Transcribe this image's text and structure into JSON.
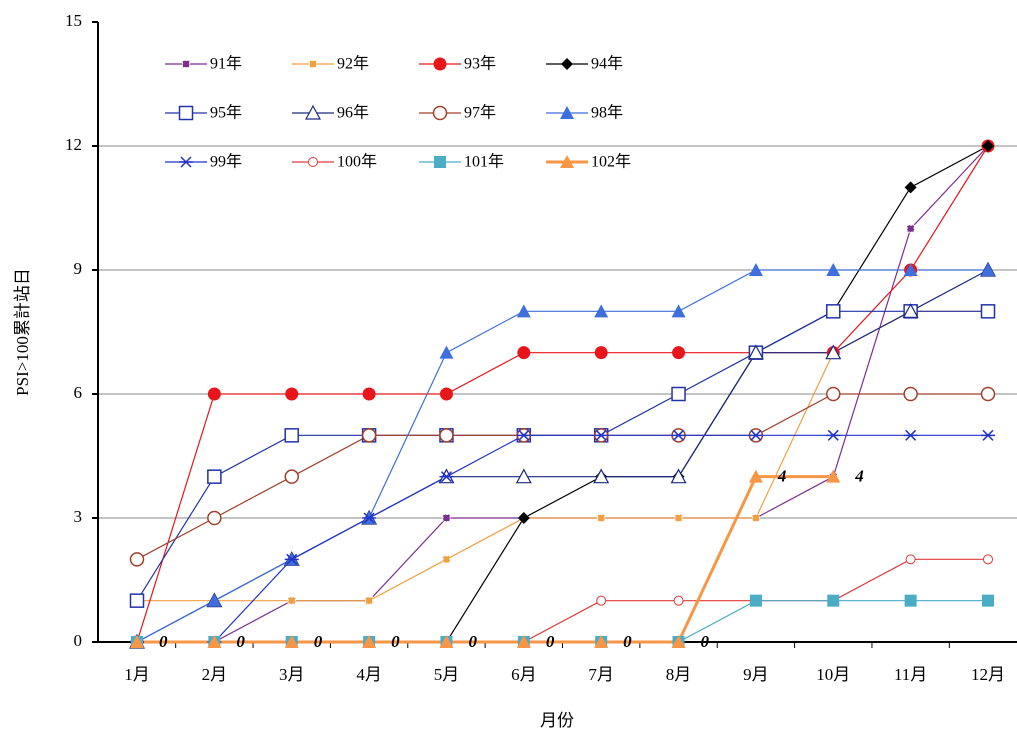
{
  "chart_data": {
    "type": "line",
    "y_label": "PSI>100累計站日",
    "x_label": "月份",
    "categories": [
      "1月",
      "2月",
      "3月",
      "4月",
      "5月",
      "6月",
      "7月",
      "8月",
      "9月",
      "10月",
      "11月",
      "12月"
    ],
    "ylim": [
      0,
      15
    ],
    "yticks": [
      0,
      3,
      6,
      9,
      12,
      15
    ],
    "grid": true,
    "series": [
      {
        "name": "91年",
        "color": "#7b2f8f",
        "marker": "smallsquare",
        "values": [
          0,
          0,
          1,
          1,
          3,
          3,
          3,
          3,
          3,
          4,
          10,
          12
        ]
      },
      {
        "name": "92年",
        "color": "#f0a040",
        "marker": "smallsquare",
        "values": [
          1,
          1,
          1,
          1,
          2,
          3,
          3,
          3,
          3,
          7,
          8,
          8
        ]
      },
      {
        "name": "93年",
        "color": "#e8161b",
        "marker": "circle",
        "values": [
          0,
          6,
          6,
          6,
          6,
          7,
          7,
          7,
          7,
          7,
          9,
          12
        ]
      },
      {
        "name": "94年",
        "color": "#000000",
        "marker": "diamond",
        "values": [
          0,
          0,
          0,
          0,
          0,
          3,
          4,
          4,
          7,
          8,
          11,
          12
        ]
      },
      {
        "name": "95年",
        "color": "#2233aa",
        "marker": "opensquare",
        "values": [
          1,
          4,
          5,
          5,
          5,
          5,
          5,
          6,
          7,
          8,
          8,
          8
        ]
      },
      {
        "name": "96年",
        "color": "#1a2a80",
        "marker": "opentriangle",
        "values": [
          0,
          1,
          2,
          3,
          4,
          4,
          4,
          4,
          7,
          7,
          8,
          9
        ]
      },
      {
        "name": "97年",
        "color": "#a0402a",
        "marker": "opencircle",
        "values": [
          2,
          3,
          4,
          5,
          5,
          5,
          5,
          5,
          5,
          6,
          6,
          6
        ]
      },
      {
        "name": "98年",
        "color": "#3f6fdc",
        "marker": "triangle",
        "values": [
          0,
          1,
          2,
          3,
          7,
          8,
          8,
          8,
          9,
          9,
          9,
          9
        ]
      },
      {
        "name": "99年",
        "color": "#2233cc",
        "marker": "star",
        "values": [
          0,
          0,
          2,
          3,
          4,
          5,
          5,
          5,
          5,
          5,
          5,
          5
        ]
      },
      {
        "name": "100年",
        "color": "#e03a3a",
        "marker": "smallcircle",
        "values": [
          0,
          0,
          0,
          0,
          0,
          0,
          1,
          1,
          1,
          1,
          2,
          2
        ]
      },
      {
        "name": "101年",
        "color": "#4bacc6",
        "marker": "square",
        "values": [
          0,
          0,
          0,
          0,
          0,
          0,
          0,
          0,
          1,
          1,
          1,
          1
        ]
      },
      {
        "name": "102年",
        "color": "#f79646",
        "marker": "triangle",
        "width": 3,
        "data_labels": true,
        "values": [
          0,
          0,
          0,
          0,
          0,
          0,
          0,
          0,
          4,
          4,
          null,
          null
        ]
      }
    ]
  }
}
